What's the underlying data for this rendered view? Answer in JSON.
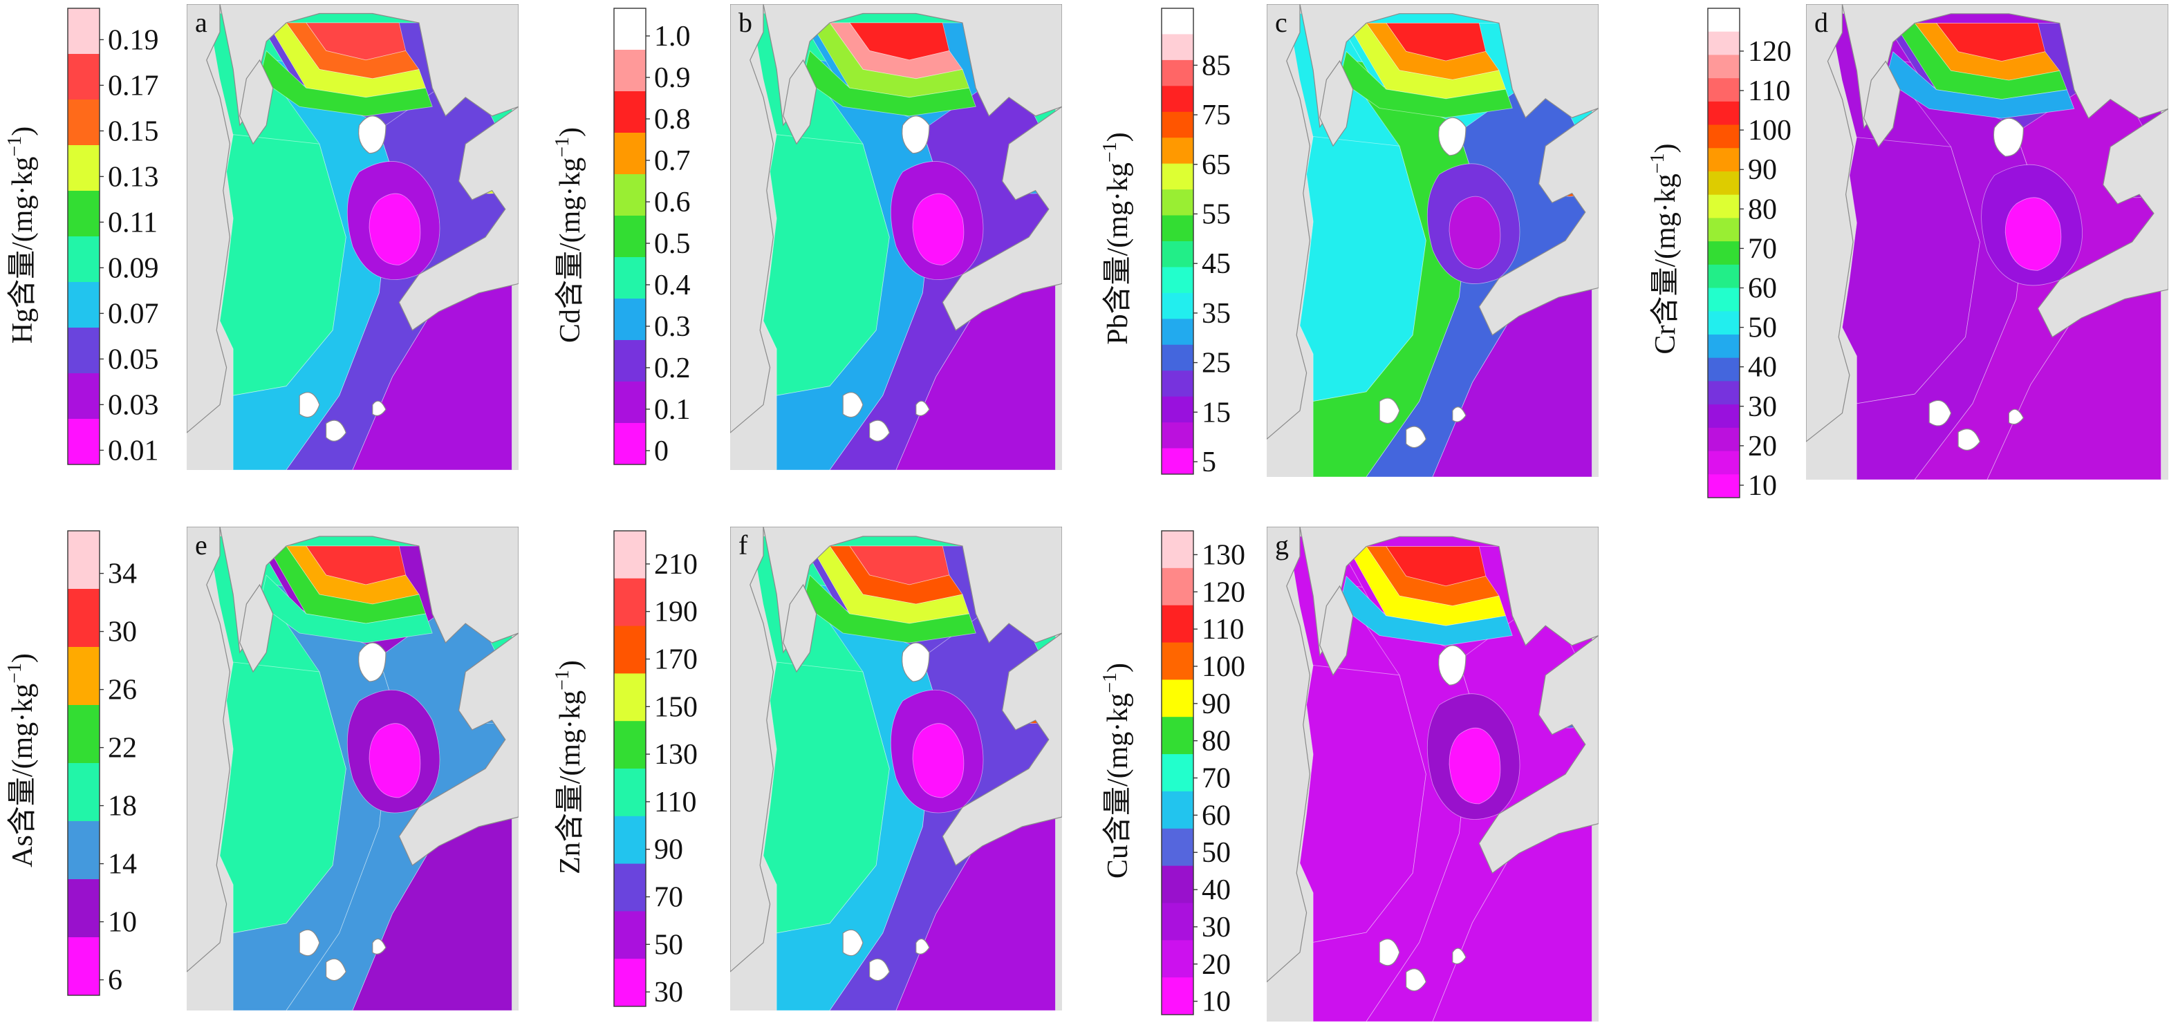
{
  "figure": {
    "panels": [
      {
        "letter": "a",
        "element": "Hg",
        "unit_label": "含量/(mg·kg",
        "unit_sup": "−1",
        "unit_tail": ")",
        "ticks": [
          "0.19",
          "0.17",
          "0.15",
          "0.13",
          "0.11",
          "0.09",
          "0.07",
          "0.05",
          "0.03",
          "0.01"
        ],
        "colors": [
          "#ffcfd6",
          "#ff4545",
          "#ff6a1a",
          "#ddff33",
          "#33dd33",
          "#22f5a8",
          "#22c4ee",
          "#6a44dd",
          "#aa11dd",
          "#ff11ff"
        ],
        "zones": [
          {
            "type": "main",
            "color": "#22f5a8"
          },
          {
            "type": "central",
            "color": "#22c4ee"
          },
          {
            "type": "east",
            "color": "#6a44dd"
          },
          {
            "type": "southeast",
            "color": "#aa11dd"
          },
          {
            "type": "blob1",
            "color": "#aa11dd"
          },
          {
            "type": "blob2",
            "color": "#ff11ff"
          },
          {
            "type": "north1",
            "color": "#6a44dd"
          },
          {
            "type": "north2",
            "color": "#ff4545"
          },
          {
            "type": "north3",
            "color": "#ff6a1a"
          },
          {
            "type": "north4",
            "color": "#ddff33"
          },
          {
            "type": "north5",
            "color": "#33dd33"
          },
          {
            "type": "bay",
            "color": "#ddff33"
          }
        ]
      },
      {
        "letter": "b",
        "element": "Cd",
        "unit_label": "含量/(mg·kg",
        "unit_sup": "−1",
        "unit_tail": ")",
        "ticks": [
          "1.0",
          "0.9",
          "0.8",
          "0.7",
          "0.6",
          "0.5",
          "0.4",
          "0.3",
          "0.2",
          "0.1",
          "0"
        ],
        "colors": [
          "#ffffff",
          "#ff9999",
          "#ff2222",
          "#ff9900",
          "#99ee33",
          "#33dd33",
          "#22f5a8",
          "#22aaee",
          "#7733dd",
          "#aa11dd",
          "#ff11ff"
        ],
        "zones": [
          {
            "type": "main",
            "color": "#22f5a8"
          },
          {
            "type": "central",
            "color": "#22aaee"
          },
          {
            "type": "east",
            "color": "#7733dd"
          },
          {
            "type": "southeast",
            "color": "#aa11dd"
          },
          {
            "type": "blob1",
            "color": "#aa11dd"
          },
          {
            "type": "blob2",
            "color": "#ff11ff"
          },
          {
            "type": "north1",
            "color": "#22aaee"
          },
          {
            "type": "north2",
            "color": "#ff2222"
          },
          {
            "type": "north3",
            "color": "#ff9999"
          },
          {
            "type": "north4",
            "color": "#99ee33"
          },
          {
            "type": "north5",
            "color": "#33dd33"
          },
          {
            "type": "bay",
            "color": "#22aaee"
          }
        ]
      },
      {
        "letter": "c",
        "element": "Pb",
        "unit_label": "含量/(mg·kg",
        "unit_sup": "−1",
        "unit_tail": ")",
        "ticks": [
          "85",
          "75",
          "65",
          "55",
          "45",
          "35",
          "25",
          "15",
          "5"
        ],
        "colors": [
          "#ffffff",
          "#ffcfd6",
          "#ff6666",
          "#ff2222",
          "#ff5500",
          "#ff9900",
          "#ddff33",
          "#99ee33",
          "#33dd33",
          "#22ee88",
          "#22ffcc",
          "#22eeee",
          "#22aaee",
          "#4466dd",
          "#7733dd",
          "#9911dd",
          "#bb11dd",
          "#ff11ff"
        ],
        "zones": [
          {
            "type": "main",
            "color": "#22eeee"
          },
          {
            "type": "central",
            "color": "#33dd33"
          },
          {
            "type": "east",
            "color": "#4466dd"
          },
          {
            "type": "southeast",
            "color": "#aa11dd"
          },
          {
            "type": "blob1",
            "color": "#7733dd"
          },
          {
            "type": "blob2",
            "color": "#bb11dd"
          },
          {
            "type": "north1",
            "color": "#22eeee"
          },
          {
            "type": "north2",
            "color": "#ff2222"
          },
          {
            "type": "north3",
            "color": "#ff9900"
          },
          {
            "type": "north4",
            "color": "#ddff33"
          },
          {
            "type": "north5",
            "color": "#33dd33"
          },
          {
            "type": "bay",
            "color": "#ff5500"
          }
        ]
      },
      {
        "letter": "d",
        "element": "Cr",
        "unit_label": "含量/(mg·kg",
        "unit_sup": "−1",
        "unit_tail": ")",
        "ticks": [
          "120",
          "110",
          "100",
          "90",
          "80",
          "70",
          "60",
          "50",
          "40",
          "30",
          "20",
          "10"
        ],
        "colors": [
          "#ffffff",
          "#ffcfd6",
          "#ff9999",
          "#ff6666",
          "#ff2222",
          "#ff5500",
          "#ff9900",
          "#ddcc00",
          "#ddff33",
          "#99ee33",
          "#33dd33",
          "#22ee88",
          "#22ffcc",
          "#22eeee",
          "#22aaee",
          "#4466dd",
          "#7733dd",
          "#9911dd",
          "#bb11dd",
          "#dd11ee",
          "#ff11ff"
        ],
        "zones": [
          {
            "type": "main",
            "color": "#aa11dd"
          },
          {
            "type": "central",
            "color": "#aa11dd"
          },
          {
            "type": "east",
            "color": "#bb11dd"
          },
          {
            "type": "southeast",
            "color": "#bb11dd"
          },
          {
            "type": "blob1",
            "color": "#9911dd"
          },
          {
            "type": "blob2",
            "color": "#ff11ff"
          },
          {
            "type": "north1",
            "color": "#7733dd"
          },
          {
            "type": "north2",
            "color": "#ff2222"
          },
          {
            "type": "north3",
            "color": "#ff9900"
          },
          {
            "type": "north4",
            "color": "#33dd33"
          },
          {
            "type": "north5",
            "color": "#22aaee"
          },
          {
            "type": "bay",
            "color": "#aa11dd"
          }
        ]
      },
      {
        "letter": "e",
        "element": "As",
        "unit_label": "含量/(mg·kg",
        "unit_sup": "−1",
        "unit_tail": ")",
        "ticks": [
          "34",
          "30",
          "26",
          "22",
          "18",
          "14",
          "10",
          "6"
        ],
        "colors": [
          "#ffcfd6",
          "#ff3333",
          "#ffaa00",
          "#33dd33",
          "#22f5a8",
          "#4499dd",
          "#9911cc",
          "#ff11ff"
        ],
        "zones": [
          {
            "type": "main",
            "color": "#22f5a8"
          },
          {
            "type": "central",
            "color": "#4499dd"
          },
          {
            "type": "east",
            "color": "#4499dd"
          },
          {
            "type": "southeast",
            "color": "#9911cc"
          },
          {
            "type": "blob1",
            "color": "#9911cc"
          },
          {
            "type": "blob2",
            "color": "#ff11ff"
          },
          {
            "type": "north1",
            "color": "#9911cc"
          },
          {
            "type": "north2",
            "color": "#ff3333"
          },
          {
            "type": "north3",
            "color": "#ffaa00"
          },
          {
            "type": "north4",
            "color": "#33dd33"
          },
          {
            "type": "north5",
            "color": "#22f5a8"
          },
          {
            "type": "bay",
            "color": "#4499dd"
          }
        ]
      },
      {
        "letter": "f",
        "element": "Zn",
        "unit_label": "含量/(mg·kg",
        "unit_sup": "−1",
        "unit_tail": ")",
        "ticks": [
          "210",
          "190",
          "170",
          "150",
          "130",
          "110",
          "90",
          "70",
          "50",
          "30"
        ],
        "colors": [
          "#ffcfd6",
          "#ff4444",
          "#ff5500",
          "#ddff33",
          "#33dd33",
          "#22f5a8",
          "#22c4ee",
          "#6a44dd",
          "#aa11dd",
          "#ff11ff"
        ],
        "zones": [
          {
            "type": "main",
            "color": "#22f5a8"
          },
          {
            "type": "central",
            "color": "#22c4ee"
          },
          {
            "type": "east",
            "color": "#6a44dd"
          },
          {
            "type": "southeast",
            "color": "#aa11dd"
          },
          {
            "type": "blob1",
            "color": "#aa11dd"
          },
          {
            "type": "blob2",
            "color": "#ff11ff"
          },
          {
            "type": "north1",
            "color": "#6a44dd"
          },
          {
            "type": "north2",
            "color": "#ff4444"
          },
          {
            "type": "north3",
            "color": "#ff5500"
          },
          {
            "type": "north4",
            "color": "#ddff33"
          },
          {
            "type": "north5",
            "color": "#33dd33"
          },
          {
            "type": "bay",
            "color": "#ff5500"
          }
        ]
      },
      {
        "letter": "g",
        "element": "Cu",
        "unit_label": "含量/(mg·kg",
        "unit_sup": "−1",
        "unit_tail": ")",
        "ticks": [
          "130",
          "120",
          "110",
          "100",
          "90",
          "80",
          "70",
          "60",
          "50",
          "40",
          "30",
          "20",
          "10"
        ],
        "colors": [
          "#ffcfd6",
          "#ff8888",
          "#ff2222",
          "#ff6600",
          "#ffff00",
          "#33dd33",
          "#22ffcc",
          "#22c4ee",
          "#5566dd",
          "#9911cc",
          "#aa11dd",
          "#cc11ee",
          "#ff11ff"
        ],
        "zones": [
          {
            "type": "main",
            "color": "#cc11ee"
          },
          {
            "type": "central",
            "color": "#cc11ee"
          },
          {
            "type": "east",
            "color": "#cc11ee"
          },
          {
            "type": "southeast",
            "color": "#cc11ee"
          },
          {
            "type": "blob1",
            "color": "#9911cc"
          },
          {
            "type": "blob2",
            "color": "#ff11ff"
          },
          {
            "type": "north1",
            "color": "#cc11ee"
          },
          {
            "type": "north2",
            "color": "#ff2222"
          },
          {
            "type": "north3",
            "color": "#ff6600"
          },
          {
            "type": "north4",
            "color": "#ffff00"
          },
          {
            "type": "north5",
            "color": "#22c4ee"
          },
          {
            "type": "bay",
            "color": "#5566dd"
          }
        ]
      }
    ]
  }
}
